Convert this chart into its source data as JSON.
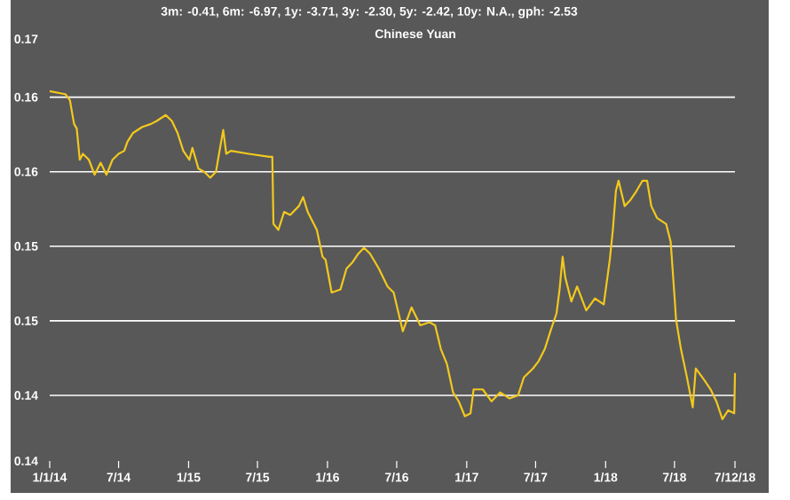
{
  "chart_data": {
    "type": "line",
    "title": "3m: -0.41,   6m: -6.97,   1y: -3.71,   3y: -2.30,   5y: -2.42,   10y: N.A.,   gph: -2.53",
    "subtitle": "Chinese Yuan",
    "color": "#f2c81e",
    "grid": "y",
    "xlim": [
      "2014-01-01",
      "2018-12-07"
    ],
    "ylim": [
      0.1406,
      0.1689
    ],
    "xticks": [
      {
        "value": "2014-01-01",
        "label": "1/1/14"
      },
      {
        "value": "2014-07-01",
        "label": "7/14"
      },
      {
        "value": "2015-01-01",
        "label": "1/15"
      },
      {
        "value": "2015-07-01",
        "label": "7/15"
      },
      {
        "value": "2016-01-01",
        "label": "1/16"
      },
      {
        "value": "2016-07-01",
        "label": "7/16"
      },
      {
        "value": "2017-01-01",
        "label": "1/17"
      },
      {
        "value": "2017-07-01",
        "label": "7/17"
      },
      {
        "value": "2018-01-01",
        "label": "1/18"
      },
      {
        "value": "2018-07-01",
        "label": "7/18"
      },
      {
        "value": "2018-12-07",
        "label": "7/12/18"
      }
    ],
    "yticks": [
      {
        "value": 0.1406,
        "label": "0.14"
      },
      {
        "value": 0.145,
        "label": "0.14"
      },
      {
        "value": 0.15,
        "label": "0.15"
      },
      {
        "value": 0.155,
        "label": "0.15"
      },
      {
        "value": 0.16,
        "label": "0.16"
      },
      {
        "value": 0.165,
        "label": "0.16"
      },
      {
        "value": 0.1689,
        "label": "0.17"
      }
    ],
    "x": [
      "2014-01-01",
      "2014-02-11",
      "2014-02-23",
      "2014-03-06",
      "2014-03-13",
      "2014-03-21",
      "2014-03-29",
      "2014-04-14",
      "2014-04-29",
      "2014-05-15",
      "2014-05-30",
      "2014-06-15",
      "2014-07-01",
      "2014-07-16",
      "2014-07-24",
      "2014-08-08",
      "2014-09-01",
      "2014-09-24",
      "2014-10-09",
      "2014-11-02",
      "2014-11-18",
      "2014-12-03",
      "2014-12-18",
      "2015-01-03",
      "2015-01-11",
      "2015-01-27",
      "2015-02-11",
      "2015-02-27",
      "2015-03-14",
      "2015-03-22",
      "2015-04-02",
      "2015-04-10",
      "2015-04-22",
      "2015-06-08",
      "2015-08-01",
      "2015-08-09",
      "2015-08-12",
      "2015-08-25",
      "2015-09-09",
      "2015-09-25",
      "2015-10-18",
      "2015-10-29",
      "2015-11-10",
      "2015-12-04",
      "2015-12-19",
      "2015-12-27",
      "2016-01-12",
      "2016-02-04",
      "2016-02-20",
      "2016-03-06",
      "2016-03-22",
      "2016-04-06",
      "2016-04-22",
      "2016-05-15",
      "2016-06-07",
      "2016-06-23",
      "2016-07-17",
      "2016-08-09",
      "2016-09-01",
      "2016-09-25",
      "2016-10-10",
      "2016-10-25",
      "2016-11-10",
      "2016-11-26",
      "2016-12-11",
      "2016-12-27",
      "2017-01-11",
      "2017-01-19",
      "2017-02-12",
      "2017-03-07",
      "2017-03-30",
      "2017-04-23",
      "2017-05-16",
      "2017-05-31",
      "2017-06-24",
      "2017-07-09",
      "2017-07-25",
      "2017-08-09",
      "2017-08-25",
      "2017-09-02",
      "2017-09-10",
      "2017-09-17",
      "2017-10-03",
      "2017-10-18",
      "2017-11-11",
      "2017-12-04",
      "2017-12-27",
      "2018-01-12",
      "2018-01-20",
      "2018-01-28",
      "2018-02-04",
      "2018-02-20",
      "2018-03-07",
      "2018-03-23",
      "2018-04-08",
      "2018-04-20",
      "2018-05-01",
      "2018-05-16",
      "2018-06-09",
      "2018-06-21",
      "2018-07-02",
      "2018-07-05",
      "2018-07-18",
      "2018-08-02",
      "2018-08-18",
      "2018-08-26",
      "2018-09-18",
      "2018-10-04",
      "2018-10-19",
      "2018-11-04",
      "2018-11-19",
      "2018-12-05",
      "2018-12-07"
    ],
    "values": [
      0.1654,
      0.1652,
      0.1648,
      0.1632,
      0.1629,
      0.1608,
      0.1612,
      0.1608,
      0.1598,
      0.1606,
      0.1598,
      0.1608,
      0.1612,
      0.1614,
      0.162,
      0.1626,
      0.163,
      0.1632,
      0.1634,
      0.1638,
      0.1634,
      0.1626,
      0.1614,
      0.1608,
      0.1616,
      0.1602,
      0.16,
      0.1596,
      0.16,
      0.1612,
      0.1628,
      0.1612,
      0.1614,
      0.1612,
      0.161,
      0.161,
      0.1565,
      0.1561,
      0.1573,
      0.1571,
      0.1577,
      0.1583,
      0.1573,
      0.1561,
      0.1543,
      0.1541,
      0.1519,
      0.1521,
      0.1535,
      0.1539,
      0.1545,
      0.1549,
      0.1545,
      0.1535,
      0.1523,
      0.1519,
      0.1493,
      0.1509,
      0.1497,
      0.1499,
      0.1497,
      0.1481,
      0.1471,
      0.1452,
      0.1446,
      0.1436,
      0.1438,
      0.1454,
      0.1454,
      0.1446,
      0.1452,
      0.1448,
      0.145,
      0.1462,
      0.1468,
      0.1473,
      0.1481,
      0.1493,
      0.1505,
      0.1521,
      0.1543,
      0.1529,
      0.1513,
      0.1523,
      0.1507,
      0.1515,
      0.1511,
      0.1541,
      0.1561,
      0.1587,
      0.1594,
      0.1577,
      0.1581,
      0.1587,
      0.1594,
      0.1594,
      0.1577,
      0.1569,
      0.1565,
      0.1553,
      0.1513,
      0.1501,
      0.1481,
      0.1463,
      0.1442,
      0.1468,
      0.146,
      0.1454,
      0.1446,
      0.1434,
      0.144,
      0.1438,
      0.1465
    ]
  }
}
